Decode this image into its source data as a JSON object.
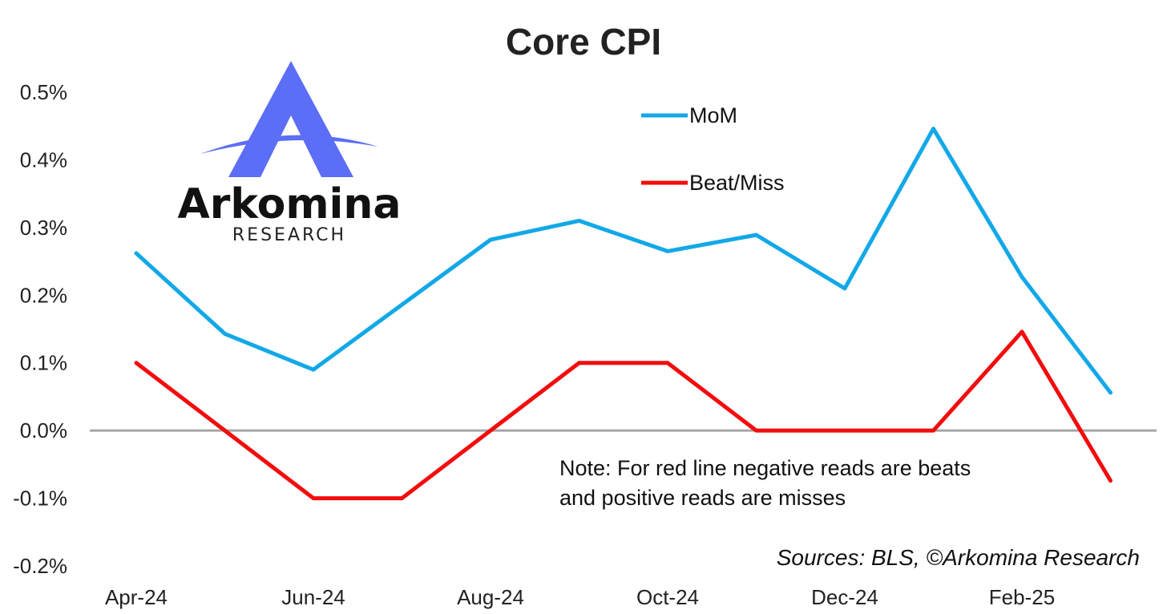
{
  "chart_data": {
    "type": "line",
    "title": "Core CPI",
    "x": [
      "Apr-24",
      "May-24",
      "Jun-24",
      "Jul-24",
      "Aug-24",
      "Sep-24",
      "Oct-24",
      "Nov-24",
      "Dec-24",
      "Jan-25",
      "Feb-25",
      "Mar-25"
    ],
    "x_tick_labels": [
      "Apr-24",
      "Jun-24",
      "Aug-24",
      "Oct-24",
      "Dec-24",
      "Feb-25"
    ],
    "y_tick_labels": [
      "0.5%",
      "0.4%",
      "0.3%",
      "0.2%",
      "0.1%",
      "0.0%",
      "-0.1%",
      "-0.2%"
    ],
    "ylim": [
      -0.2,
      0.5
    ],
    "y_unit": "%",
    "zero_line": true,
    "grid": false,
    "legend_position": "top-center",
    "series": [
      {
        "name": "MoM",
        "color": "#12A8E8",
        "values": [
          0.262,
          0.143,
          0.09,
          0.186,
          0.282,
          0.31,
          0.265,
          0.289,
          0.21,
          0.446,
          0.227,
          0.056
        ]
      },
      {
        "name": "Beat/Miss",
        "color": "#F20D0D",
        "values": [
          0.1,
          0.0,
          -0.1,
          -0.1,
          0.0,
          0.1,
          0.1,
          0.0,
          0.0,
          0.0,
          0.146,
          -0.074
        ]
      }
    ],
    "annotations": [
      "Note: For red line negative reads are beats",
      "and positive reads are misses"
    ],
    "source": "Sources: BLS, ©Arkomina Research"
  },
  "logo": {
    "name": "Arkomina",
    "subtitle": "RESEARCH",
    "color": "#5B6EF5"
  }
}
